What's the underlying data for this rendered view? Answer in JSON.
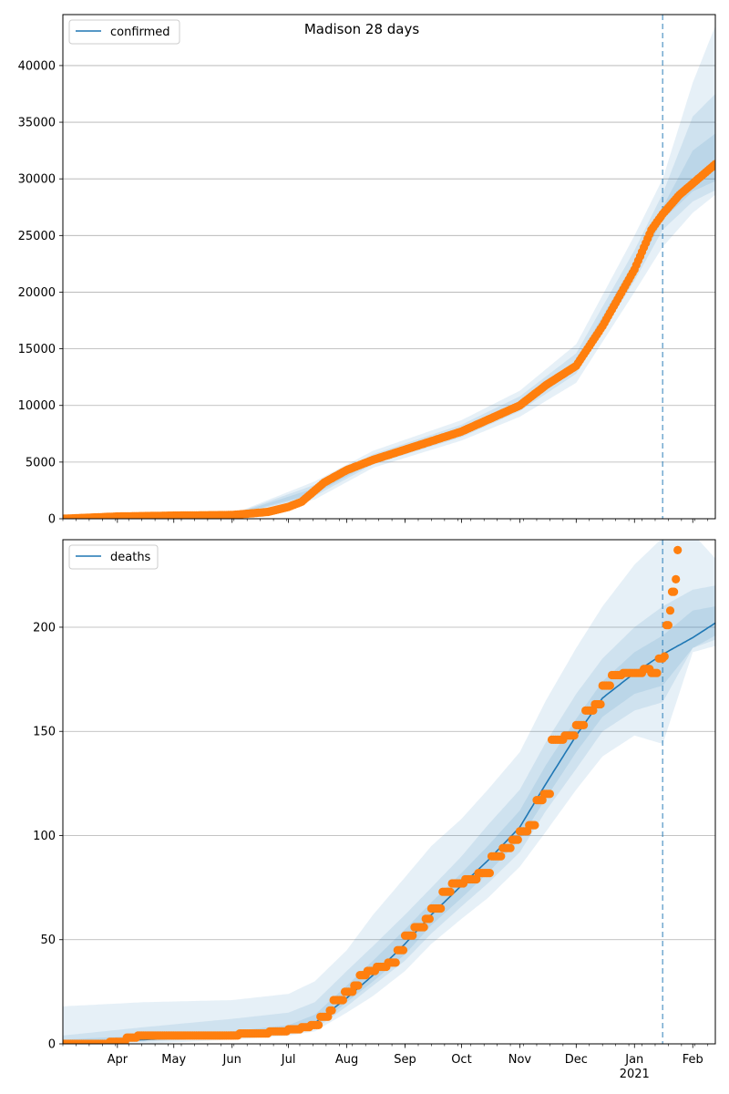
{
  "figure_title": "Madison 28 days",
  "colors": {
    "line": "#1f77b4",
    "points": "#ff7f0e",
    "band": "#1f77b4",
    "grid": "#b0b0b0",
    "cutoff": "#1f77b4"
  },
  "x_axis": {
    "start": "2020-03-03",
    "end": "2021-02-13",
    "month_ticks": [
      "2020-04-01",
      "2020-05-01",
      "2020-06-01",
      "2020-07-01",
      "2020-08-01",
      "2020-09-01",
      "2020-10-01",
      "2020-11-01",
      "2020-12-01",
      "2021-01-01",
      "2021-02-01"
    ],
    "month_labels": [
      "Apr",
      "May",
      "Jun",
      "Jul",
      "Aug",
      "Sep",
      "Oct",
      "Nov",
      "Dec",
      "Jan",
      "Feb"
    ],
    "year_label": "2021",
    "year_label_under": "Jan"
  },
  "chart_data": [
    {
      "type": "line",
      "panel": "top",
      "title": "Madison 28 days",
      "series": [
        {
          "name": "confirmed",
          "kind": "model-line"
        },
        {
          "kind": "observed-points"
        }
      ],
      "legend_location": "upper left",
      "grid": "horizontal",
      "ylim": [
        0,
        44500
      ],
      "yticks": [
        0,
        5000,
        10000,
        15000,
        20000,
        25000,
        30000,
        35000,
        40000
      ],
      "forecast_start": "2021-01-16",
      "observed_anchors": [
        [
          "2020-03-03",
          0
        ],
        [
          "2020-04-01",
          200
        ],
        [
          "2020-05-01",
          280
        ],
        [
          "2020-06-01",
          330
        ],
        [
          "2020-06-20",
          600
        ],
        [
          "2020-07-01",
          1050
        ],
        [
          "2020-07-08",
          1500
        ],
        [
          "2020-07-20",
          3200
        ],
        [
          "2020-08-01",
          4300
        ],
        [
          "2020-08-15",
          5200
        ],
        [
          "2020-09-01",
          6100
        ],
        [
          "2020-10-01",
          7700
        ],
        [
          "2020-11-01",
          10000
        ],
        [
          "2020-11-15",
          11800
        ],
        [
          "2020-12-01",
          13500
        ],
        [
          "2020-12-15",
          17000
        ],
        [
          "2021-01-01",
          22000
        ],
        [
          "2021-01-10",
          25500
        ],
        [
          "2021-01-16",
          26900
        ],
        [
          "2021-01-25",
          28600
        ],
        [
          "2021-02-13",
          31300
        ]
      ],
      "model_anchors": [
        [
          "2020-03-03",
          0
        ],
        [
          "2020-04-01",
          190
        ],
        [
          "2020-05-01",
          270
        ],
        [
          "2020-06-01",
          320
        ],
        [
          "2020-06-20",
          580
        ],
        [
          "2020-07-01",
          1000
        ],
        [
          "2020-07-08",
          1450
        ],
        [
          "2020-07-20",
          3100
        ],
        [
          "2020-08-01",
          4250
        ],
        [
          "2020-08-15",
          5150
        ],
        [
          "2020-09-01",
          6050
        ],
        [
          "2020-10-01",
          7700
        ],
        [
          "2020-11-01",
          10100
        ],
        [
          "2020-11-15",
          11900
        ],
        [
          "2020-12-01",
          13600
        ],
        [
          "2020-12-15",
          17000
        ],
        [
          "2021-01-01",
          22200
        ],
        [
          "2021-01-10",
          25600
        ],
        [
          "2021-01-16",
          26900
        ],
        [
          "2021-01-25",
          28600
        ],
        [
          "2021-02-13",
          31500
        ]
      ],
      "band_anchors": [
        [
          "2020-03-03",
          0,
          0,
          0,
          0,
          0,
          0
        ],
        [
          "2020-06-01",
          250,
          280,
          300,
          350,
          380,
          400
        ],
        [
          "2020-07-15",
          1700,
          2000,
          2200,
          2700,
          3000,
          3300
        ],
        [
          "2020-08-15",
          4500,
          4800,
          5000,
          5400,
          5700,
          6000
        ],
        [
          "2020-10-01",
          6900,
          7200,
          7500,
          7900,
          8300,
          8700
        ],
        [
          "2020-11-01",
          9000,
          9500,
          9900,
          10300,
          10800,
          11300
        ],
        [
          "2020-12-01",
          12000,
          12800,
          13300,
          13900,
          14600,
          15400
        ],
        [
          "2021-01-01",
          20000,
          21000,
          21700,
          22700,
          23700,
          25000
        ],
        [
          "2021-01-16",
          24000,
          25500,
          26400,
          27500,
          28700,
          30000
        ],
        [
          "2021-02-01",
          27000,
          28000,
          28900,
          32500,
          35500,
          38500
        ],
        [
          "2021-02-13",
          28600,
          29000,
          29800,
          34000,
          37500,
          43500
        ]
      ]
    },
    {
      "type": "line",
      "panel": "bottom",
      "series": [
        {
          "name": "deaths",
          "kind": "model-line"
        },
        {
          "kind": "observed-points"
        }
      ],
      "legend_location": "upper left",
      "grid": "horizontal",
      "ylim": [
        0,
        242
      ],
      "yticks": [
        0,
        50,
        100,
        150,
        200
      ],
      "forecast_start": "2021-01-16",
      "observed_steps": [
        [
          "2020-03-03",
          0
        ],
        [
          "2020-03-28",
          1
        ],
        [
          "2020-04-06",
          3
        ],
        [
          "2020-04-12",
          4
        ],
        [
          "2020-06-05",
          5
        ],
        [
          "2020-06-21",
          6
        ],
        [
          "2020-07-01",
          7
        ],
        [
          "2020-07-08",
          8
        ],
        [
          "2020-07-13",
          9
        ],
        [
          "2020-07-18",
          13
        ],
        [
          "2020-07-23",
          16
        ],
        [
          "2020-07-25",
          21
        ],
        [
          "2020-07-31",
          25
        ],
        [
          "2020-08-05",
          28
        ],
        [
          "2020-08-08",
          33
        ],
        [
          "2020-08-12",
          35
        ],
        [
          "2020-08-17",
          37
        ],
        [
          "2020-08-23",
          39
        ],
        [
          "2020-08-28",
          45
        ],
        [
          "2020-09-01",
          52
        ],
        [
          "2020-09-06",
          56
        ],
        [
          "2020-09-12",
          60
        ],
        [
          "2020-09-15",
          65
        ],
        [
          "2020-09-21",
          73
        ],
        [
          "2020-09-26",
          77
        ],
        [
          "2020-10-03",
          79
        ],
        [
          "2020-10-10",
          82
        ],
        [
          "2020-10-17",
          90
        ],
        [
          "2020-10-23",
          94
        ],
        [
          "2020-10-28",
          98
        ],
        [
          "2020-11-01",
          102
        ],
        [
          "2020-11-06",
          105
        ],
        [
          "2020-11-10",
          117
        ],
        [
          "2020-11-14",
          120
        ],
        [
          "2020-11-18",
          146
        ],
        [
          "2020-11-25",
          148
        ],
        [
          "2020-12-01",
          153
        ],
        [
          "2020-12-06",
          160
        ],
        [
          "2020-12-11",
          163
        ],
        [
          "2020-12-15",
          172
        ],
        [
          "2020-12-20",
          177
        ],
        [
          "2020-12-26",
          178
        ],
        [
          "2021-01-06",
          180
        ],
        [
          "2021-01-10",
          178
        ],
        [
          "2021-01-14",
          185
        ],
        [
          "2021-01-17",
          186
        ],
        [
          "2021-01-18",
          201
        ],
        [
          "2021-01-20",
          208
        ],
        [
          "2021-01-21",
          217
        ],
        [
          "2021-01-23",
          223
        ],
        [
          "2021-01-24",
          237
        ]
      ],
      "model_anchors": [
        [
          "2020-03-03",
          0
        ],
        [
          "2020-04-15",
          2
        ],
        [
          "2020-06-01",
          4
        ],
        [
          "2020-07-01",
          6
        ],
        [
          "2020-07-15",
          10
        ],
        [
          "2020-08-01",
          22
        ],
        [
          "2020-08-15",
          33
        ],
        [
          "2020-09-01",
          48
        ],
        [
          "2020-09-15",
          62
        ],
        [
          "2020-10-01",
          76
        ],
        [
          "2020-10-15",
          88
        ],
        [
          "2020-11-01",
          104
        ],
        [
          "2020-11-15",
          125
        ],
        [
          "2020-12-01",
          148
        ],
        [
          "2020-12-15",
          166
        ],
        [
          "2021-01-01",
          178
        ],
        [
          "2021-01-16",
          187
        ],
        [
          "2021-02-01",
          195
        ],
        [
          "2021-02-13",
          202
        ]
      ],
      "band_anchors": [
        [
          "2020-03-03",
          0,
          0,
          0,
          2,
          4,
          18
        ],
        [
          "2020-04-15",
          0,
          1,
          2,
          4,
          8,
          20
        ],
        [
          "2020-06-01",
          2,
          3,
          3,
          6,
          12,
          21
        ],
        [
          "2020-07-01",
          4,
          5,
          5,
          9,
          15,
          24
        ],
        [
          "2020-07-15",
          6,
          7,
          8,
          14,
          20,
          30
        ],
        [
          "2020-08-01",
          15,
          18,
          20,
          28,
          35,
          45
        ],
        [
          "2020-08-15",
          23,
          28,
          30,
          40,
          47,
          62
        ],
        [
          "2020-09-01",
          35,
          40,
          43,
          55,
          62,
          80
        ],
        [
          "2020-09-15",
          48,
          53,
          57,
          68,
          75,
          95
        ],
        [
          "2020-10-01",
          60,
          66,
          70,
          82,
          90,
          108
        ],
        [
          "2020-10-15",
          70,
          77,
          82,
          95,
          105,
          122
        ],
        [
          "2020-11-01",
          85,
          92,
          98,
          112,
          122,
          140
        ],
        [
          "2020-11-15",
          102,
          112,
          118,
          134,
          145,
          165
        ],
        [
          "2020-12-01",
          122,
          132,
          140,
          156,
          168,
          190
        ],
        [
          "2020-12-15",
          138,
          150,
          157,
          174,
          185,
          210
        ],
        [
          "2021-01-01",
          148,
          160,
          168,
          188,
          200,
          230
        ],
        [
          "2021-01-16",
          144,
          164,
          172,
          196,
          210,
          243
        ],
        [
          "2021-02-01",
          188,
          190,
          190,
          208,
          218,
          245
        ],
        [
          "2021-02-13",
          191,
          194,
          196,
          210,
          220,
          233
        ]
      ]
    }
  ]
}
